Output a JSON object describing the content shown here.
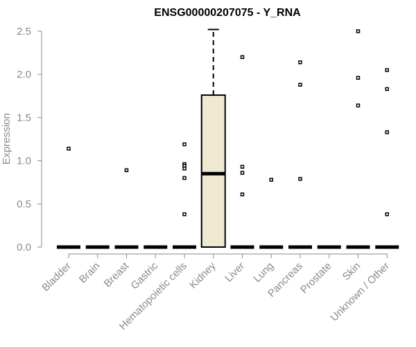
{
  "chart_data": {
    "type": "box",
    "title": "ENSG00000207075 - Y_RNA",
    "xlabel": "",
    "ylabel": "Expression",
    "ylim": [
      0,
      2.5
    ],
    "yticks": [
      "0.0",
      "0.5",
      "1.0",
      "1.5",
      "2.0",
      "2.5"
    ],
    "grid": false,
    "colors": {
      "box_fill": "#efe9d2",
      "stroke": "#000000",
      "axis": "#8a8a8a"
    },
    "categories": [
      "Bladder",
      "Brain",
      "Breast",
      "Gastric",
      "Hematopoietic cells",
      "Kidney",
      "Liver",
      "Lung",
      "Pancreas",
      "Prostate",
      "Skin",
      "Unknown / Other"
    ],
    "boxes": [
      {
        "category": "Bladder",
        "q1": 0,
        "median": 0,
        "q3": 0,
        "whisker_low": 0,
        "whisker_high": 0,
        "outliers": [
          1.14
        ]
      },
      {
        "category": "Brain",
        "q1": 0,
        "median": 0,
        "q3": 0,
        "whisker_low": 0,
        "whisker_high": 0,
        "outliers": []
      },
      {
        "category": "Breast",
        "q1": 0,
        "median": 0,
        "q3": 0,
        "whisker_low": 0,
        "whisker_high": 0,
        "outliers": [
          0.89
        ]
      },
      {
        "category": "Gastric",
        "q1": 0,
        "median": 0,
        "q3": 0,
        "whisker_low": 0,
        "whisker_high": 0,
        "outliers": []
      },
      {
        "category": "Hematopoietic cells",
        "q1": 0,
        "median": 0,
        "q3": 0,
        "whisker_low": 0,
        "whisker_high": 0,
        "outliers": [
          1.19,
          0.96,
          0.94,
          0.91,
          0.8,
          0.38
        ]
      },
      {
        "category": "Kidney",
        "q1": 0,
        "median": 0.85,
        "q3": 1.76,
        "whisker_low": 0,
        "whisker_high": 2.52,
        "outliers": []
      },
      {
        "category": "Liver",
        "q1": 0,
        "median": 0,
        "q3": 0,
        "whisker_low": 0,
        "whisker_high": 0,
        "outliers": [
          2.2,
          0.93,
          0.86,
          0.61
        ]
      },
      {
        "category": "Lung",
        "q1": 0,
        "median": 0,
        "q3": 0,
        "whisker_low": 0,
        "whisker_high": 0,
        "outliers": [
          0.78
        ]
      },
      {
        "category": "Pancreas",
        "q1": 0,
        "median": 0,
        "q3": 0,
        "whisker_low": 0,
        "whisker_high": 0,
        "outliers": [
          2.14,
          1.88,
          0.79
        ]
      },
      {
        "category": "Prostate",
        "q1": 0,
        "median": 0,
        "q3": 0,
        "whisker_low": 0,
        "whisker_high": 0,
        "outliers": []
      },
      {
        "category": "Skin",
        "q1": 0,
        "median": 0,
        "q3": 0,
        "whisker_low": 0,
        "whisker_high": 0,
        "outliers": [
          2.5,
          1.96,
          1.64
        ]
      },
      {
        "category": "Unknown / Other",
        "q1": 0,
        "median": 0,
        "q3": 0,
        "whisker_low": 0,
        "whisker_high": 0,
        "outliers": [
          2.05,
          1.83,
          1.33,
          0.38
        ]
      }
    ]
  }
}
